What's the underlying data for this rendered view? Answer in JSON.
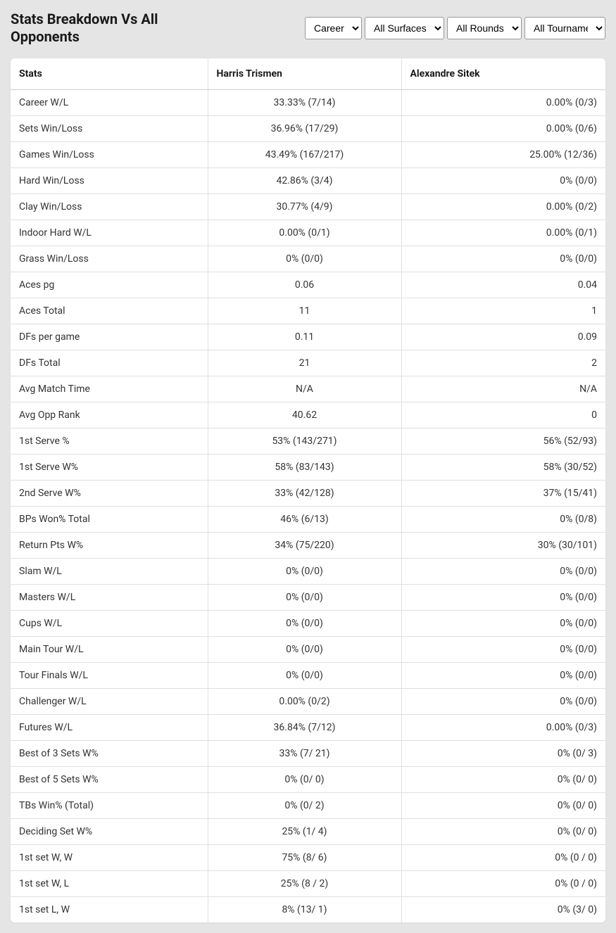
{
  "header": {
    "title": "Stats Breakdown Vs All Opponents",
    "filters": {
      "period": {
        "selected": "Career",
        "options": [
          "Career"
        ]
      },
      "surface": {
        "selected": "All Surfaces",
        "options": [
          "All Surfaces"
        ]
      },
      "rounds": {
        "selected": "All Rounds",
        "options": [
          "All Rounds"
        ]
      },
      "tournaments": {
        "selected": "All Tournaments",
        "options": [
          "All Tournaments"
        ]
      }
    }
  },
  "table": {
    "columns": [
      "Stats",
      "Harris Trismen",
      "Alexandre Sitek"
    ],
    "rows": [
      {
        "stat": "Career W/L",
        "p1": "33.33% (7/14)",
        "p2": "0.00% (0/3)"
      },
      {
        "stat": "Sets Win/Loss",
        "p1": "36.96% (17/29)",
        "p2": "0.00% (0/6)"
      },
      {
        "stat": "Games Win/Loss",
        "p1": "43.49% (167/217)",
        "p2": "25.00% (12/36)"
      },
      {
        "stat": "Hard Win/Loss",
        "p1": "42.86% (3/4)",
        "p2": "0% (0/0)"
      },
      {
        "stat": "Clay Win/Loss",
        "p1": "30.77% (4/9)",
        "p2": "0.00% (0/2)"
      },
      {
        "stat": "Indoor Hard W/L",
        "p1": "0.00% (0/1)",
        "p2": "0.00% (0/1)"
      },
      {
        "stat": "Grass Win/Loss",
        "p1": "0% (0/0)",
        "p2": "0% (0/0)"
      },
      {
        "stat": "Aces pg",
        "p1": "0.06",
        "p2": "0.04"
      },
      {
        "stat": "Aces Total",
        "p1": "11",
        "p2": "1"
      },
      {
        "stat": "DFs per game",
        "p1": "0.11",
        "p2": "0.09"
      },
      {
        "stat": "DFs Total",
        "p1": "21",
        "p2": "2"
      },
      {
        "stat": "Avg Match Time",
        "p1": "N/A",
        "p2": "N/A"
      },
      {
        "stat": "Avg Opp Rank",
        "p1": "40.62",
        "p2": "0"
      },
      {
        "stat": "1st Serve %",
        "p1": "53% (143/271)",
        "p2": "56% (52/93)"
      },
      {
        "stat": "1st Serve W%",
        "p1": "58% (83/143)",
        "p2": "58% (30/52)"
      },
      {
        "stat": "2nd Serve W%",
        "p1": "33% (42/128)",
        "p2": "37% (15/41)"
      },
      {
        "stat": "BPs Won% Total",
        "p1": "46% (6/13)",
        "p2": "0% (0/8)"
      },
      {
        "stat": "Return Pts W%",
        "p1": "34% (75/220)",
        "p2": "30% (30/101)"
      },
      {
        "stat": "Slam W/L",
        "p1": "0% (0/0)",
        "p2": "0% (0/0)"
      },
      {
        "stat": "Masters W/L",
        "p1": "0% (0/0)",
        "p2": "0% (0/0)"
      },
      {
        "stat": "Cups W/L",
        "p1": "0% (0/0)",
        "p2": "0% (0/0)"
      },
      {
        "stat": "Main Tour W/L",
        "p1": "0% (0/0)",
        "p2": "0% (0/0)"
      },
      {
        "stat": "Tour Finals W/L",
        "p1": "0% (0/0)",
        "p2": "0% (0/0)"
      },
      {
        "stat": "Challenger W/L",
        "p1": "0.00% (0/2)",
        "p2": "0% (0/0)"
      },
      {
        "stat": "Futures W/L",
        "p1": "36.84% (7/12)",
        "p2": "0.00% (0/3)"
      },
      {
        "stat": "Best of 3 Sets W%",
        "p1": "33% (7/ 21)",
        "p2": "0% (0/ 3)"
      },
      {
        "stat": "Best of 5 Sets W%",
        "p1": "0% (0/ 0)",
        "p2": "0% (0/ 0)"
      },
      {
        "stat": "TBs Win% (Total)",
        "p1": "0% (0/ 2)",
        "p2": "0% (0/ 0)"
      },
      {
        "stat": "Deciding Set W%",
        "p1": "25% (1/ 4)",
        "p2": "0% (0/ 0)"
      },
      {
        "stat": "1st set W, W",
        "p1": "75% (8/ 6)",
        "p2": "0% (0 / 0)"
      },
      {
        "stat": "1st set W, L",
        "p1": "25% (8 / 2)",
        "p2": "0% (0 / 0)"
      },
      {
        "stat": "1st set L, W",
        "p1": "8% (13/ 1)",
        "p2": "0% (3/ 0)"
      }
    ]
  }
}
